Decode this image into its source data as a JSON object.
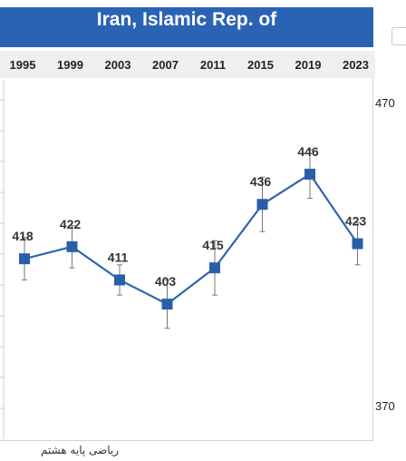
{
  "chart_data": {
    "type": "line",
    "title": "Iran, Islamic Rep. of",
    "categories": [
      "1995",
      "1999",
      "2003",
      "2007",
      "2011",
      "2015",
      "2019",
      "2023"
    ],
    "series": [
      {
        "values": [
          418,
          422,
          411,
          403,
          415,
          436,
          446,
          423
        ],
        "error_bars": [
          7,
          7,
          5,
          8,
          9,
          9,
          8,
          7
        ]
      }
    ],
    "ylim": [
      370,
      470
    ],
    "y_tick_labels": [
      "470",
      "370"
    ],
    "grid": false,
    "colors": {
      "line": "#2f65ab",
      "marker": "#2b5ea8",
      "banner": "#2b63b4"
    }
  },
  "caption": "ریاضی پایه هشتم"
}
